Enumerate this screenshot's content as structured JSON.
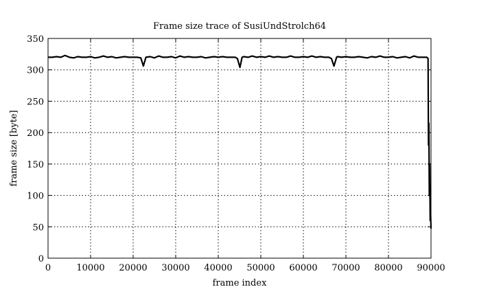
{
  "chart_data": {
    "type": "line",
    "title": "Frame size trace of SusiUndStrolch64",
    "xlabel": "frame index",
    "ylabel": "frame size [byte]",
    "xlim": [
      0,
      90000
    ],
    "ylim": [
      0,
      350
    ],
    "xticks": [
      0,
      10000,
      20000,
      30000,
      40000,
      50000,
      60000,
      70000,
      80000,
      90000
    ],
    "yticks": [
      0,
      50,
      100,
      150,
      200,
      250,
      300,
      350
    ],
    "grid": true,
    "line_color": "#000000",
    "points": [
      [
        0,
        320
      ],
      [
        1000,
        320
      ],
      [
        2000,
        321
      ],
      [
        3000,
        320
      ],
      [
        4000,
        323
      ],
      [
        5000,
        320
      ],
      [
        6000,
        319
      ],
      [
        7000,
        321
      ],
      [
        8000,
        320
      ],
      [
        9000,
        320
      ],
      [
        10000,
        321
      ],
      [
        11000,
        319
      ],
      [
        12000,
        320
      ],
      [
        13000,
        322
      ],
      [
        14000,
        320
      ],
      [
        15000,
        321
      ],
      [
        16000,
        319
      ],
      [
        17000,
        320
      ],
      [
        18000,
        321
      ],
      [
        19000,
        320
      ],
      [
        20000,
        320
      ],
      [
        21000,
        320
      ],
      [
        21800,
        319
      ],
      [
        22400,
        306
      ],
      [
        23000,
        320
      ],
      [
        24000,
        321
      ],
      [
        25000,
        319
      ],
      [
        26000,
        322
      ],
      [
        27000,
        320
      ],
      [
        28000,
        320
      ],
      [
        29000,
        321
      ],
      [
        30000,
        319
      ],
      [
        31000,
        322
      ],
      [
        32000,
        320
      ],
      [
        33000,
        321
      ],
      [
        34000,
        320
      ],
      [
        35000,
        320
      ],
      [
        36000,
        321
      ],
      [
        37000,
        319
      ],
      [
        38000,
        320
      ],
      [
        39000,
        321
      ],
      [
        40000,
        320
      ],
      [
        41000,
        321
      ],
      [
        42000,
        320
      ],
      [
        43000,
        320
      ],
      [
        44000,
        320
      ],
      [
        44500,
        318
      ],
      [
        45100,
        304
      ],
      [
        45600,
        320
      ],
      [
        46000,
        321
      ],
      [
        47000,
        320
      ],
      [
        48000,
        322
      ],
      [
        49000,
        320
      ],
      [
        50000,
        321
      ],
      [
        51000,
        320
      ],
      [
        52000,
        322
      ],
      [
        53000,
        320
      ],
      [
        54000,
        321
      ],
      [
        55000,
        320
      ],
      [
        56000,
        320
      ],
      [
        57000,
        322
      ],
      [
        58000,
        320
      ],
      [
        59000,
        320
      ],
      [
        60000,
        321
      ],
      [
        61000,
        320
      ],
      [
        62000,
        322
      ],
      [
        63000,
        320
      ],
      [
        64000,
        321
      ],
      [
        65000,
        320
      ],
      [
        66000,
        320
      ],
      [
        66600,
        318
      ],
      [
        67200,
        306
      ],
      [
        67800,
        320
      ],
      [
        68000,
        321
      ],
      [
        69000,
        320
      ],
      [
        70000,
        321
      ],
      [
        71000,
        320
      ],
      [
        72000,
        320
      ],
      [
        73000,
        321
      ],
      [
        74000,
        320
      ],
      [
        75000,
        319
      ],
      [
        76000,
        321
      ],
      [
        77000,
        320
      ],
      [
        78000,
        322
      ],
      [
        79000,
        320
      ],
      [
        80000,
        320
      ],
      [
        81000,
        321
      ],
      [
        82000,
        319
      ],
      [
        83000,
        320
      ],
      [
        84000,
        321
      ],
      [
        85000,
        319
      ],
      [
        86000,
        322
      ],
      [
        87000,
        320
      ],
      [
        88000,
        320
      ],
      [
        89000,
        320
      ],
      [
        89300,
        318
      ],
      [
        89400,
        180
      ],
      [
        89500,
        215
      ],
      [
        89600,
        100
      ],
      [
        89700,
        150
      ],
      [
        89800,
        60
      ],
      [
        89900,
        70
      ],
      [
        90000,
        47
      ]
    ]
  }
}
